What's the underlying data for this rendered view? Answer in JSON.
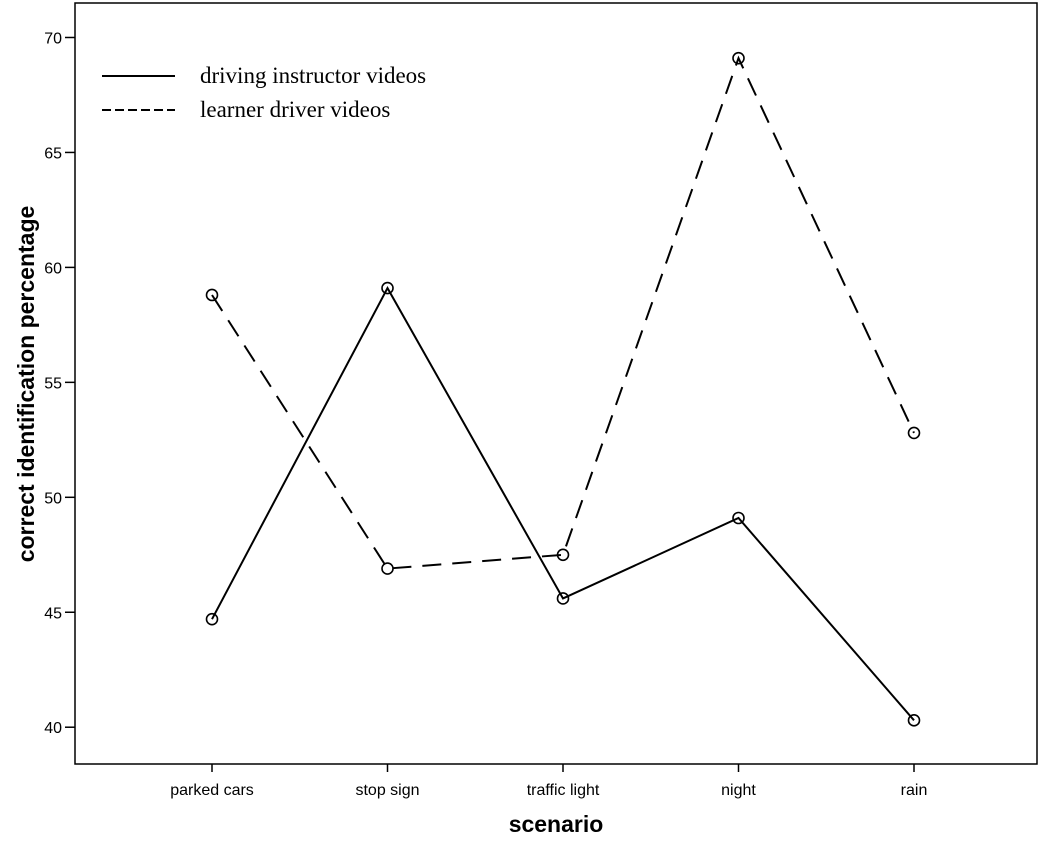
{
  "chart_data": {
    "type": "line",
    "categories": [
      "parked cars",
      "stop sign",
      "traffic light",
      "night",
      "rain"
    ],
    "series": [
      {
        "name": "driving instructor videos",
        "style": "solid",
        "values": [
          44.7,
          59.1,
          45.6,
          49.1,
          40.3
        ]
      },
      {
        "name": "learner driver videos",
        "style": "dashed",
        "values": [
          58.8,
          46.9,
          47.5,
          69.1,
          52.8
        ]
      }
    ],
    "xlabel": "scenario",
    "ylabel": "correct identification percentage",
    "ylim": [
      38.4,
      71.5
    ],
    "yticks": [
      "40",
      "45",
      "50",
      "55",
      "60",
      "65",
      "70"
    ],
    "grid": false,
    "legend_position": "top-left",
    "line_color": "#000000",
    "background": "#ffffff"
  }
}
